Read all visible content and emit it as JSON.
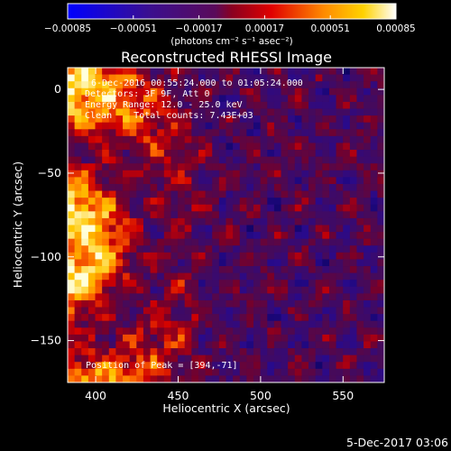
{
  "chart_data": {
    "type": "heatmap",
    "title": "Reconstructed RHESSI Image",
    "xlabel": "Heliocentric X (arcsec)",
    "ylabel": "Heliocentric Y (arcsec)",
    "xlim": [
      383,
      575
    ],
    "ylim": [
      -175,
      13
    ],
    "x_ticks": [
      400,
      450,
      500,
      550
    ],
    "y_ticks": [
      0,
      -50,
      -100,
      -150
    ],
    "x_tick_labels": [
      "400",
      "450",
      "500",
      "550"
    ],
    "y_tick_labels": [
      "0",
      "−50",
      "−100",
      "−150"
    ],
    "colorbar": {
      "ticks": [
        -0.00085,
        -0.00051,
        -0.00017,
        0.00017,
        0.00051,
        0.00085
      ],
      "tick_labels": [
        "−0.00085",
        "−0.00051",
        "−0.00017",
        "0.00017",
        "0.00051",
        "0.00085"
      ],
      "unit_label": "(photons cm⁻² s⁻¹ asec⁻²)"
    },
    "annotations": [
      "6-Dec-2016 00:55:24.000 to 01:05:24.000",
      "Detectors: 3F 9F, Att 0",
      "Energy Range: 12.0 - 25.0 keV",
      "Clean    Total counts: 7.43E+03",
      "Position of Peak = [394,-71]"
    ],
    "grid": false
  },
  "footer": {
    "date": "5-Dec-2017 03:06"
  },
  "colors": {
    "background": "#000000",
    "foreground": "#ffffff"
  }
}
